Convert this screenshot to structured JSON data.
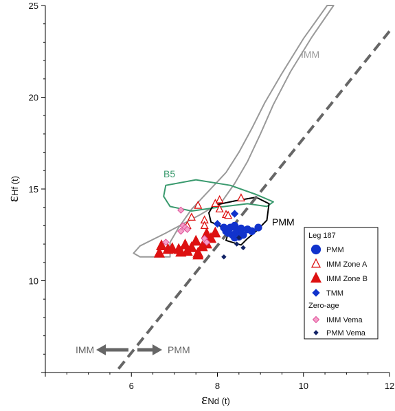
{
  "chart_data": {
    "type": "scatter",
    "xlim": [
      4,
      12
    ],
    "ylim": [
      5,
      25
    ],
    "x_ticks": [
      4,
      6,
      8,
      10,
      12
    ],
    "x_tick_labels": [
      "6",
      "8",
      "10",
      "12"
    ],
    "y_ticks": [
      5,
      10,
      15,
      20,
      25
    ],
    "y_tick_labels": [
      "10",
      "15",
      "20",
      "25"
    ],
    "xlabel": {
      "symbol": "ε",
      "sub": "Nd (t)"
    },
    "ylabel": {
      "symbol": "ε",
      "sub": "Hf (t)"
    },
    "grid": false,
    "dashed_line": {
      "from": [
        5.7,
        5.2
      ],
      "to": [
        12,
        23.6
      ],
      "color": "#666666"
    },
    "arrow_labels": {
      "left": "IMM",
      "right": "PMM",
      "color": "#666666"
    },
    "regions": [
      {
        "label": "IMM",
        "color": "#999999",
        "points": [
          [
            6.9,
            11.3
          ],
          [
            6.2,
            11.3
          ],
          [
            6.05,
            11.5
          ],
          [
            6.2,
            11.9
          ],
          [
            6.8,
            12.6
          ],
          [
            7.6,
            13.6
          ],
          [
            8.1,
            14.3
          ],
          [
            8.4,
            15.3
          ],
          [
            8.7,
            16.5
          ],
          [
            9.0,
            18.0
          ],
          [
            9.3,
            19.6
          ],
          [
            9.7,
            21.4
          ],
          [
            10.2,
            23.3
          ],
          [
            10.7,
            25
          ],
          [
            10.55,
            25
          ],
          [
            10.0,
            23.2
          ],
          [
            9.5,
            21.3
          ],
          [
            9.1,
            19.7
          ],
          [
            8.8,
            18.3
          ],
          [
            8.5,
            17.0
          ],
          [
            8.2,
            15.9
          ],
          [
            7.8,
            14.9
          ],
          [
            7.4,
            13.9
          ],
          [
            7.1,
            12.9
          ],
          [
            6.9,
            12.1
          ]
        ]
      },
      {
        "label": "B5",
        "color": "#3a9a6e",
        "points": [
          [
            6.8,
            15.2
          ],
          [
            7.5,
            15.5
          ],
          [
            8.3,
            15.2
          ],
          [
            8.9,
            14.7
          ],
          [
            9.3,
            14.3
          ],
          [
            9.15,
            14.05
          ],
          [
            8.7,
            14.2
          ],
          [
            8.0,
            14.0
          ],
          [
            7.4,
            13.8
          ],
          [
            6.9,
            14.05
          ],
          [
            6.75,
            14.6
          ]
        ]
      },
      {
        "label": "PMM",
        "color": "#000000",
        "points": [
          [
            7.9,
            14.1
          ],
          [
            8.4,
            14.35
          ],
          [
            8.9,
            14.55
          ],
          [
            9.2,
            14.2
          ],
          [
            9.15,
            13.3
          ],
          [
            8.9,
            12.7
          ],
          [
            8.7,
            12.3
          ],
          [
            8.55,
            11.95
          ],
          [
            8.2,
            12.2
          ],
          [
            8.25,
            12.6
          ],
          [
            8.05,
            13.0
          ],
          [
            7.85,
            13.2
          ],
          [
            7.8,
            13.7
          ]
        ]
      }
    ],
    "series": [
      {
        "name": "PMM",
        "marker": "circle",
        "color": "#1133cc",
        "filled": true,
        "size": 5,
        "points": [
          [
            8.2,
            12.7
          ],
          [
            8.3,
            12.9
          ],
          [
            8.4,
            13.0
          ],
          [
            8.35,
            12.5
          ],
          [
            8.45,
            12.7
          ],
          [
            8.55,
            12.85
          ],
          [
            8.25,
            12.6
          ],
          [
            8.6,
            12.5
          ],
          [
            8.7,
            12.8
          ],
          [
            8.8,
            12.7
          ],
          [
            8.95,
            12.9
          ],
          [
            8.4,
            12.35
          ],
          [
            8.5,
            12.4
          ],
          [
            8.15,
            12.9
          ]
        ]
      },
      {
        "name": "IMM Zone A",
        "marker": "triangle",
        "color": "#dd1111",
        "filled": false,
        "size": 5,
        "points": [
          [
            7.55,
            14.1
          ],
          [
            7.95,
            14.2
          ],
          [
            7.3,
            13.0
          ],
          [
            7.4,
            13.45
          ],
          [
            7.7,
            13.3
          ],
          [
            8.05,
            13.9
          ],
          [
            8.2,
            13.6
          ],
          [
            8.25,
            13.55
          ],
          [
            8.55,
            14.5
          ],
          [
            7.7,
            13.0
          ],
          [
            8.05,
            14.4
          ]
        ]
      },
      {
        "name": "IMM Zone B",
        "marker": "triangle",
        "color": "#dd1111",
        "filled": true,
        "size": 7,
        "points": [
          [
            6.65,
            11.5
          ],
          [
            6.7,
            11.9
          ],
          [
            6.95,
            11.75
          ],
          [
            7.1,
            11.7
          ],
          [
            7.25,
            11.95
          ],
          [
            7.4,
            11.8
          ],
          [
            7.55,
            11.5
          ],
          [
            7.65,
            11.85
          ],
          [
            7.55,
            11.4
          ],
          [
            7.75,
            12.0
          ],
          [
            7.85,
            12.3
          ],
          [
            7.95,
            12.6
          ],
          [
            7.75,
            12.55
          ],
          [
            7.5,
            12.15
          ],
          [
            6.85,
            11.7
          ],
          [
            7.3,
            11.6
          ],
          [
            7.15,
            11.55
          ]
        ]
      },
      {
        "name": "TMM",
        "marker": "diamond",
        "color": "#1133cc",
        "filled": true,
        "size": 5,
        "points": [
          [
            8.0,
            13.1
          ],
          [
            8.4,
            13.65
          ]
        ]
      },
      {
        "name": "IMM  Vema",
        "marker": "diamond",
        "color": "#e0509a",
        "filled": false,
        "fill": "#f4a0c8",
        "size": 4.5,
        "points": [
          [
            6.8,
            12.1
          ],
          [
            7.15,
            12.7
          ],
          [
            7.2,
            13.0
          ],
          [
            7.25,
            12.9
          ],
          [
            7.3,
            12.8
          ],
          [
            7.15,
            13.85
          ],
          [
            7.7,
            12.3
          ],
          [
            7.75,
            12.1
          ]
        ]
      },
      {
        "name": "PMM Vema",
        "marker": "diamond",
        "color": "#112266",
        "filled": true,
        "size": 3,
        "points": [
          [
            8.15,
            11.3
          ],
          [
            8.45,
            12.0
          ],
          [
            8.6,
            11.8
          ],
          [
            8.5,
            12.35
          ]
        ]
      }
    ],
    "legend": {
      "placement": "bottom-right",
      "header1": "Leg 187",
      "header2": "Zero-age",
      "items": [
        "PMM",
        "IMM Zone A",
        "IMM Zone B",
        "TMM",
        "IMM  Vema",
        "PMM Vema"
      ]
    }
  }
}
